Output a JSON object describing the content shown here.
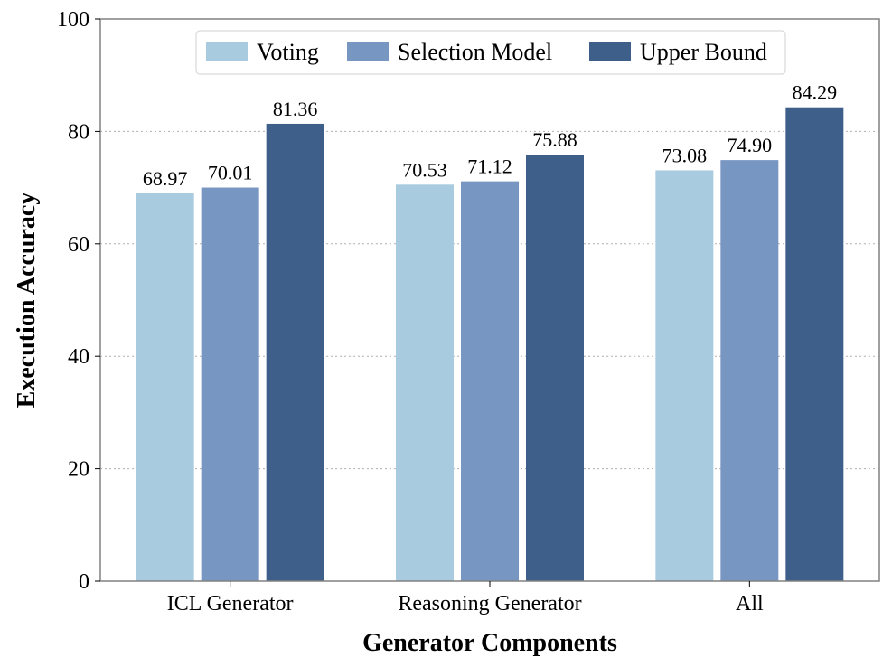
{
  "chart_data": {
    "type": "bar",
    "xlabel": "Generator Components",
    "ylabel": "Execution Accuracy",
    "categories": [
      "ICL Generator",
      "Reasoning Generator",
      "All"
    ],
    "series": [
      {
        "name": "Voting",
        "color": "#a9cbdf",
        "values": [
          68.97,
          70.53,
          73.08
        ],
        "labels": [
          "68.97",
          "70.53",
          "73.08"
        ]
      },
      {
        "name": "Selection Model",
        "color": "#7896c2",
        "values": [
          70.01,
          71.12,
          74.9
        ],
        "labels": [
          "70.01",
          "71.12",
          "74.90"
        ]
      },
      {
        "name": "Upper Bound",
        "color": "#3e5f8a",
        "values": [
          81.36,
          75.88,
          84.29
        ],
        "labels": [
          "81.36",
          "75.88",
          "84.29"
        ]
      }
    ],
    "ylim": [
      0,
      100
    ],
    "yticks": [
      0,
      20,
      40,
      60,
      80,
      100
    ],
    "grid": "horizontal dotted",
    "legend_position": "top-center"
  }
}
